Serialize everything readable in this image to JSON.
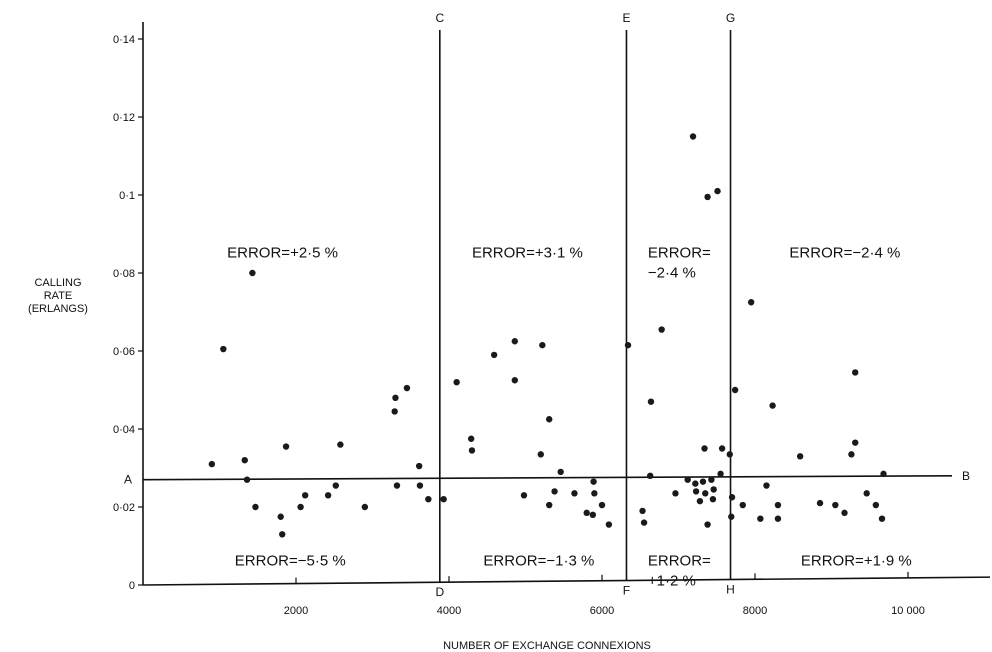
{
  "chart_data": {
    "type": "scatter",
    "title": "",
    "xlabel": "NUMBER OF EXCHANGE CONNEXIONS",
    "ylabel": [
      "CALLING",
      "RATE",
      "(ERLANGS)"
    ],
    "xlim": [
      0,
      11000
    ],
    "ylim": [
      0,
      0.145
    ],
    "x_ticks": [
      {
        "value": 2000,
        "label": "2000"
      },
      {
        "value": 4000,
        "label": "4000"
      },
      {
        "value": 6000,
        "label": "6000"
      },
      {
        "value": 8000,
        "label": "8000"
      },
      {
        "value": 10000,
        "label": "10 000"
      }
    ],
    "y_ticks": [
      {
        "value": 0,
        "label": "0"
      },
      {
        "value": 0.02,
        "label": "0·02"
      },
      {
        "value": 0.04,
        "label": "0·04"
      },
      {
        "value": 0.06,
        "label": "0·06"
      },
      {
        "value": 0.08,
        "label": "0·08"
      },
      {
        "value": 0.1,
        "label": "0·1"
      },
      {
        "value": 0.12,
        "label": "0·12"
      },
      {
        "value": 0.14,
        "label": "0·14"
      }
    ],
    "grid": false,
    "points": [
      {
        "x": 900,
        "y": 0.031
      },
      {
        "x": 1050,
        "y": 0.0605
      },
      {
        "x": 1330,
        "y": 0.032
      },
      {
        "x": 1360,
        "y": 0.027
      },
      {
        "x": 1430,
        "y": 0.08
      },
      {
        "x": 1470,
        "y": 0.02
      },
      {
        "x": 1800,
        "y": 0.0175
      },
      {
        "x": 1820,
        "y": 0.013
      },
      {
        "x": 1870,
        "y": 0.0355
      },
      {
        "x": 2060,
        "y": 0.02
      },
      {
        "x": 2120,
        "y": 0.023
      },
      {
        "x": 2420,
        "y": 0.023
      },
      {
        "x": 2520,
        "y": 0.0255
      },
      {
        "x": 2580,
        "y": 0.036
      },
      {
        "x": 2900,
        "y": 0.02
      },
      {
        "x": 3290,
        "y": 0.0445
      },
      {
        "x": 3300,
        "y": 0.048
      },
      {
        "x": 3320,
        "y": 0.0255
      },
      {
        "x": 3450,
        "y": 0.0505
      },
      {
        "x": 3610,
        "y": 0.0305
      },
      {
        "x": 3620,
        "y": 0.0255
      },
      {
        "x": 3730,
        "y": 0.022
      },
      {
        "x": 3930,
        "y": 0.022
      },
      {
        "x": 4100,
        "y": 0.052
      },
      {
        "x": 4290,
        "y": 0.0375
      },
      {
        "x": 4300,
        "y": 0.0345
      },
      {
        "x": 4590,
        "y": 0.059
      },
      {
        "x": 4860,
        "y": 0.0625
      },
      {
        "x": 4860,
        "y": 0.0525
      },
      {
        "x": 4980,
        "y": 0.023
      },
      {
        "x": 5200,
        "y": 0.0335
      },
      {
        "x": 5220,
        "y": 0.0615
      },
      {
        "x": 5310,
        "y": 0.0425
      },
      {
        "x": 5310,
        "y": 0.0205
      },
      {
        "x": 5380,
        "y": 0.024
      },
      {
        "x": 5460,
        "y": 0.029
      },
      {
        "x": 5640,
        "y": 0.0235
      },
      {
        "x": 5800,
        "y": 0.0185
      },
      {
        "x": 5890,
        "y": 0.0265
      },
      {
        "x": 5900,
        "y": 0.0235
      },
      {
        "x": 5880,
        "y": 0.018
      },
      {
        "x": 6000,
        "y": 0.0205
      },
      {
        "x": 6090,
        "y": 0.0155
      },
      {
        "x": 6340,
        "y": 0.0615
      },
      {
        "x": 6530,
        "y": 0.019
      },
      {
        "x": 6550,
        "y": 0.016
      },
      {
        "x": 6630,
        "y": 0.028
      },
      {
        "x": 6640,
        "y": 0.047
      },
      {
        "x": 6780,
        "y": 0.0655
      },
      {
        "x": 6960,
        "y": 0.0235
      },
      {
        "x": 7120,
        "y": 0.027
      },
      {
        "x": 7190,
        "y": 0.115
      },
      {
        "x": 7220,
        "y": 0.026
      },
      {
        "x": 7230,
        "y": 0.024
      },
      {
        "x": 7280,
        "y": 0.0215
      },
      {
        "x": 7320,
        "y": 0.0265
      },
      {
        "x": 7340,
        "y": 0.035
      },
      {
        "x": 7350,
        "y": 0.0235
      },
      {
        "x": 7380,
        "y": 0.0995
      },
      {
        "x": 7380,
        "y": 0.0155
      },
      {
        "x": 7430,
        "y": 0.027
      },
      {
        "x": 7450,
        "y": 0.022
      },
      {
        "x": 7460,
        "y": 0.0245
      },
      {
        "x": 7510,
        "y": 0.101
      },
      {
        "x": 7550,
        "y": 0.0285
      },
      {
        "x": 7570,
        "y": 0.035
      },
      {
        "x": 7670,
        "y": 0.0335
      },
      {
        "x": 7700,
        "y": 0.0225
      },
      {
        "x": 7690,
        "y": 0.0175
      },
      {
        "x": 7740,
        "y": 0.05
      },
      {
        "x": 7840,
        "y": 0.0205
      },
      {
        "x": 7950,
        "y": 0.0725
      },
      {
        "x": 8070,
        "y": 0.017
      },
      {
        "x": 8150,
        "y": 0.0255
      },
      {
        "x": 8230,
        "y": 0.046
      },
      {
        "x": 8300,
        "y": 0.0205
      },
      {
        "x": 8300,
        "y": 0.017
      },
      {
        "x": 8590,
        "y": 0.033
      },
      {
        "x": 8850,
        "y": 0.021
      },
      {
        "x": 9050,
        "y": 0.0205
      },
      {
        "x": 9170,
        "y": 0.0185
      },
      {
        "x": 9260,
        "y": 0.0335
      },
      {
        "x": 9310,
        "y": 0.0545
      },
      {
        "x": 9310,
        "y": 0.0365
      },
      {
        "x": 9460,
        "y": 0.0235
      },
      {
        "x": 9580,
        "y": 0.0205
      },
      {
        "x": 9680,
        "y": 0.0285
      },
      {
        "x": 9660,
        "y": 0.017
      }
    ],
    "vertical_lines": [
      {
        "x": 3880,
        "top_label": "C",
        "bottom_label": "D"
      },
      {
        "x": 6320,
        "top_label": "E",
        "bottom_label": "F"
      },
      {
        "x": 7680,
        "top_label": "G",
        "bottom_label": "H"
      }
    ],
    "horizontal_line": {
      "y_left": 0.027,
      "y_right": 0.028,
      "left_label": "A",
      "right_label": "B"
    },
    "annotations": [
      {
        "lines": [
          "ERROR=+2·5 %"
        ],
        "x": 1100,
        "y": 0.084
      },
      {
        "lines": [
          "ERROR=+3·1 %"
        ],
        "x": 4300,
        "y": 0.084
      },
      {
        "lines": [
          "ERROR=",
          "−2·4 %"
        ],
        "x": 6600,
        "y": 0.084
      },
      {
        "lines": [
          "ERROR=−2·4 %"
        ],
        "x": 8450,
        "y": 0.084
      },
      {
        "lines": [
          "ERROR=−5·5 %"
        ],
        "x": 1200,
        "y": 0.005
      },
      {
        "lines": [
          "ERROR=−1·3 %"
        ],
        "x": 4450,
        "y": 0.005
      },
      {
        "lines": [
          "ERROR=",
          "+1·2 %"
        ],
        "x": 6600,
        "y": 0.005
      },
      {
        "lines": [
          "ERROR=+1·9 %"
        ],
        "x": 8600,
        "y": 0.005
      }
    ]
  }
}
